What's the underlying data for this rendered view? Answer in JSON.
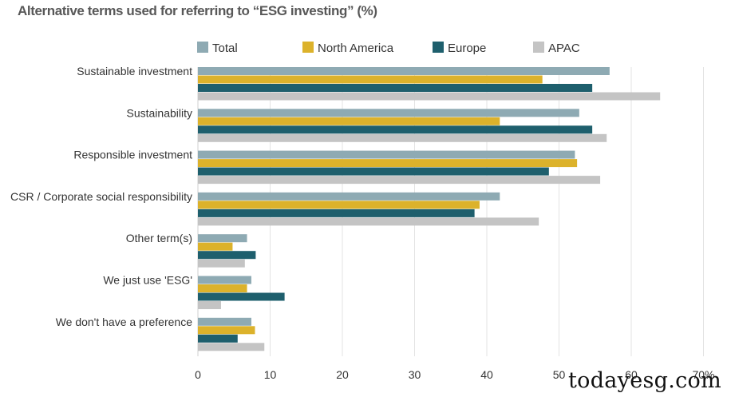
{
  "chart_data": {
    "type": "bar",
    "orientation": "horizontal",
    "title": "Alternative terms used for referring to “ESG investing” (%)",
    "categories": [
      "Sustainable investment",
      "Sustainability",
      "Responsible investment",
      "CSR / Corporate social responsibility",
      "Other term(s)",
      "We just use 'ESG'",
      "We don't have a preference"
    ],
    "series": [
      {
        "name": "Total",
        "color": "#8eaab3",
        "values": [
          57,
          52.8,
          52.2,
          41.8,
          6.8,
          7.4,
          7.4
        ]
      },
      {
        "name": "North America",
        "color": "#dcb22b",
        "values": [
          47.7,
          41.8,
          52.5,
          39,
          4.8,
          6.8,
          7.9
        ]
      },
      {
        "name": "Europe",
        "color": "#1e5f6d",
        "values": [
          54.6,
          54.6,
          48.6,
          38.3,
          8,
          12,
          5.5
        ]
      },
      {
        "name": "APAC",
        "color": "#c4c4c4",
        "values": [
          64,
          56.6,
          55.7,
          47.2,
          6.5,
          3.2,
          9.2
        ]
      }
    ],
    "xticks": [
      "0",
      "10",
      "20",
      "30",
      "40",
      "50",
      "60",
      "70%"
    ],
    "xlim": [
      0,
      70
    ],
    "grid": true,
    "legend_position": "top"
  },
  "watermark": "todayesg.com"
}
